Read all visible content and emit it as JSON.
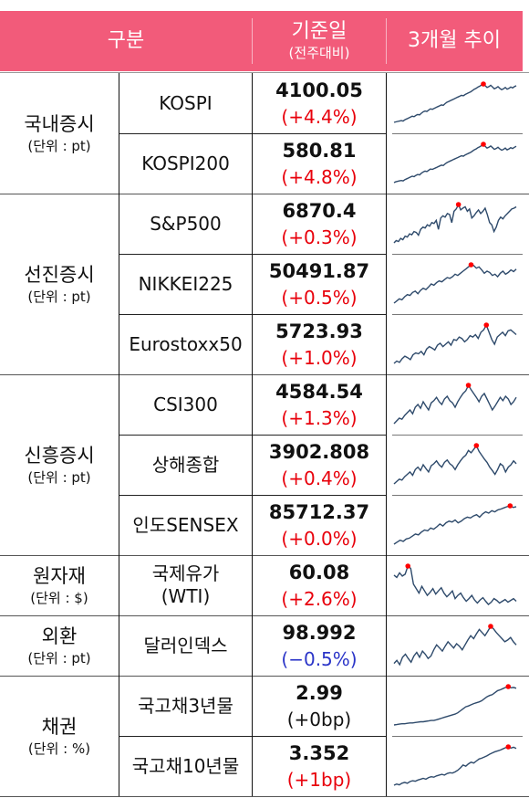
{
  "header": {
    "category": "구분",
    "base_date": "기준일",
    "base_date_sub": "(전주대비)",
    "trend": "3개월 추이"
  },
  "colors": {
    "header_bg": "#f25b7a",
    "up": "#e8000b",
    "down": "#2b35c8",
    "neutral": "#111111",
    "spark_line": "#2e4a6b",
    "spark_peak": "#ff0000"
  },
  "groups": [
    {
      "name": "국내증시",
      "unit": "(단위 : pt)",
      "rows": [
        {
          "name": "KOSPI",
          "value": "4100.05",
          "change": "(+4.4%)",
          "dir": "up",
          "trend": [
            12,
            13,
            14,
            15,
            16,
            15,
            18,
            20,
            22,
            24,
            26,
            25,
            28,
            30,
            29,
            33,
            36,
            38,
            37,
            40,
            43,
            42,
            44,
            46,
            48,
            50,
            52,
            51,
            55,
            58,
            60,
            62,
            64,
            66,
            68,
            70,
            72,
            74,
            73,
            76,
            78,
            80,
            82,
            85,
            88,
            90,
            93,
            95,
            98,
            100,
            96,
            92,
            94,
            97,
            93,
            89,
            91,
            94,
            90,
            87,
            89,
            92,
            88,
            90,
            93,
            91,
            94,
            96
          ]
        },
        {
          "name": "KOSPI200",
          "value": "580.81",
          "change": "(+4.8%)",
          "dir": "up",
          "trend": [
            10,
            12,
            13,
            14,
            15,
            14,
            17,
            19,
            21,
            23,
            25,
            24,
            27,
            29,
            28,
            32,
            35,
            37,
            36,
            39,
            42,
            41,
            43,
            45,
            47,
            49,
            51,
            50,
            54,
            57,
            59,
            61,
            63,
            65,
            67,
            69,
            71,
            73,
            72,
            75,
            77,
            79,
            81,
            84,
            87,
            89,
            92,
            94,
            97,
            100,
            95,
            91,
            93,
            96,
            92,
            88,
            90,
            93,
            89,
            86,
            88,
            91,
            87,
            89,
            92,
            90,
            93,
            95
          ]
        }
      ]
    },
    {
      "name": "선진증시",
      "unit": "(단위 : pt)",
      "rows": [
        {
          "name": "S&P500",
          "value": "6870.4",
          "change": "(+0.3%)",
          "dir": "up",
          "trend": [
            15,
            20,
            18,
            25,
            22,
            30,
            28,
            35,
            33,
            40,
            38,
            32,
            45,
            50,
            48,
            55,
            52,
            60,
            58,
            65,
            45,
            70,
            75,
            72,
            80,
            78,
            60,
            85,
            90,
            100,
            88,
            92,
            95,
            85,
            90,
            70,
            75,
            82,
            88,
            80,
            85,
            92,
            78,
            60,
            55,
            40,
            50,
            65,
            72,
            68,
            75,
            80,
            85,
            90,
            92,
            95
          ]
        },
        {
          "name": "NIKKEI225",
          "value": "50491.87",
          "change": "(+0.5%)",
          "dir": "up",
          "trend": [
            10,
            15,
            20,
            18,
            25,
            30,
            28,
            35,
            38,
            32,
            40,
            45,
            42,
            48,
            55,
            52,
            58,
            62,
            60,
            65,
            70,
            68,
            72,
            78,
            75,
            80,
            85,
            90,
            95,
            100,
            98,
            92,
            95,
            88,
            80,
            85,
            82,
            75,
            78,
            72,
            80,
            85,
            78,
            82,
            88,
            84,
            90
          ]
        },
        {
          "name": "Eurostoxx50",
          "value": "5723.93",
          "change": "(+1.0%)",
          "dir": "up",
          "trend": [
            20,
            25,
            22,
            30,
            35,
            32,
            28,
            38,
            42,
            40,
            45,
            38,
            50,
            55,
            52,
            48,
            58,
            62,
            55,
            60,
            65,
            58,
            70,
            68,
            75,
            72,
            65,
            70,
            78,
            75,
            80,
            72,
            85,
            90,
            100,
            85,
            70,
            60,
            75,
            80,
            85,
            78,
            88,
            90,
            85,
            80
          ]
        }
      ]
    },
    {
      "name": "신흥증시",
      "unit": "(단위 : pt)",
      "rows": [
        {
          "name": "CSI300",
          "value": "4584.54",
          "change": "(+1.3%)",
          "dir": "up",
          "trend": [
            30,
            35,
            40,
            38,
            45,
            50,
            55,
            48,
            60,
            65,
            58,
            70,
            62,
            55,
            68,
            72,
            78,
            70,
            65,
            75,
            80,
            72,
            68,
            60,
            70,
            78,
            85,
            90,
            100,
            92,
            85,
            78,
            70,
            80,
            85,
            75,
            65,
            55,
            62,
            70,
            78,
            72,
            80,
            75,
            65,
            70,
            78
          ]
        },
        {
          "name": "상해종합",
          "value": "3902.808",
          "change": "(+0.4%)",
          "dir": "up",
          "trend": [
            20,
            25,
            30,
            28,
            35,
            40,
            45,
            38,
            50,
            55,
            48,
            60,
            52,
            45,
            58,
            62,
            68,
            60,
            55,
            65,
            70,
            62,
            58,
            50,
            60,
            68,
            75,
            80,
            90,
            85,
            92,
            100,
            88,
            80,
            72,
            65,
            55,
            48,
            40,
            50,
            62,
            58,
            45,
            55,
            60,
            68,
            62
          ]
        },
        {
          "name": "인도SENSEX",
          "value": "85712.37",
          "change": "(+0.0%)",
          "dir": "up",
          "trend": [
            5,
            10,
            15,
            12,
            18,
            20,
            25,
            30,
            28,
            35,
            40,
            38,
            45,
            42,
            48,
            55,
            50,
            58,
            62,
            60,
            65,
            58,
            62,
            68,
            72,
            70,
            75,
            78,
            72,
            80,
            85,
            82,
            88,
            85,
            90,
            92,
            95,
            98,
            100,
            96,
            98
          ]
        }
      ]
    },
    {
      "name": "원자재",
      "unit": "(단위 : $)",
      "rows": [
        {
          "name": "국제유가\n(WTI)",
          "value": "60.08",
          "change": "(+2.6%)",
          "dir": "up",
          "trend": [
            80,
            75,
            85,
            78,
            82,
            100,
            95,
            60,
            50,
            40,
            55,
            45,
            35,
            42,
            50,
            38,
            45,
            52,
            40,
            32,
            38,
            45,
            28,
            35,
            40,
            30,
            22,
            28,
            35,
            25,
            18,
            25,
            30,
            22,
            15,
            20,
            28,
            24,
            18,
            22,
            26,
            20,
            24,
            28,
            22
          ]
        }
      ]
    },
    {
      "name": "외환",
      "unit": "(단위 : pt)",
      "rows": [
        {
          "name": "달러인덱스",
          "value": "98.992",
          "change": "(−0.5%)",
          "dir": "down",
          "trend": [
            40,
            45,
            38,
            50,
            55,
            48,
            42,
            52,
            58,
            50,
            60,
            55,
            48,
            52,
            62,
            70,
            65,
            60,
            68,
            75,
            70,
            65,
            72,
            68,
            62,
            70,
            78,
            85,
            80,
            88,
            95,
            90,
            85,
            92,
            100,
            96,
            90,
            85,
            80,
            75,
            78,
            82,
            75,
            70
          ]
        }
      ]
    },
    {
      "name": "채권",
      "unit": "(단위 : %)",
      "rows": [
        {
          "name": "국고채3년물",
          "value": "2.99",
          "change": "(+0bp)",
          "dir": "neutral",
          "trend": [
            5,
            6,
            7,
            8,
            8,
            9,
            10,
            10,
            11,
            12,
            13,
            13,
            14,
            15,
            16,
            16,
            18,
            20,
            22,
            24,
            26,
            28,
            30,
            32,
            35,
            40,
            45,
            50,
            52,
            55,
            58,
            60,
            62,
            65,
            70,
            75,
            78,
            80,
            85,
            90,
            92,
            95,
            98,
            100,
            97,
            98,
            96
          ]
        },
        {
          "name": "국고채10년물",
          "value": "3.352",
          "change": "(+1bp)",
          "dir": "up",
          "trend": [
            5,
            8,
            6,
            10,
            12,
            10,
            14,
            16,
            15,
            18,
            20,
            22,
            20,
            24,
            26,
            25,
            28,
            30,
            32,
            30,
            34,
            36,
            35,
            38,
            42,
            48,
            55,
            52,
            58,
            62,
            60,
            65,
            70,
            72,
            75,
            78,
            82,
            85,
            88,
            90,
            92,
            95,
            98,
            100,
            97,
            99,
            96
          ]
        }
      ]
    }
  ]
}
